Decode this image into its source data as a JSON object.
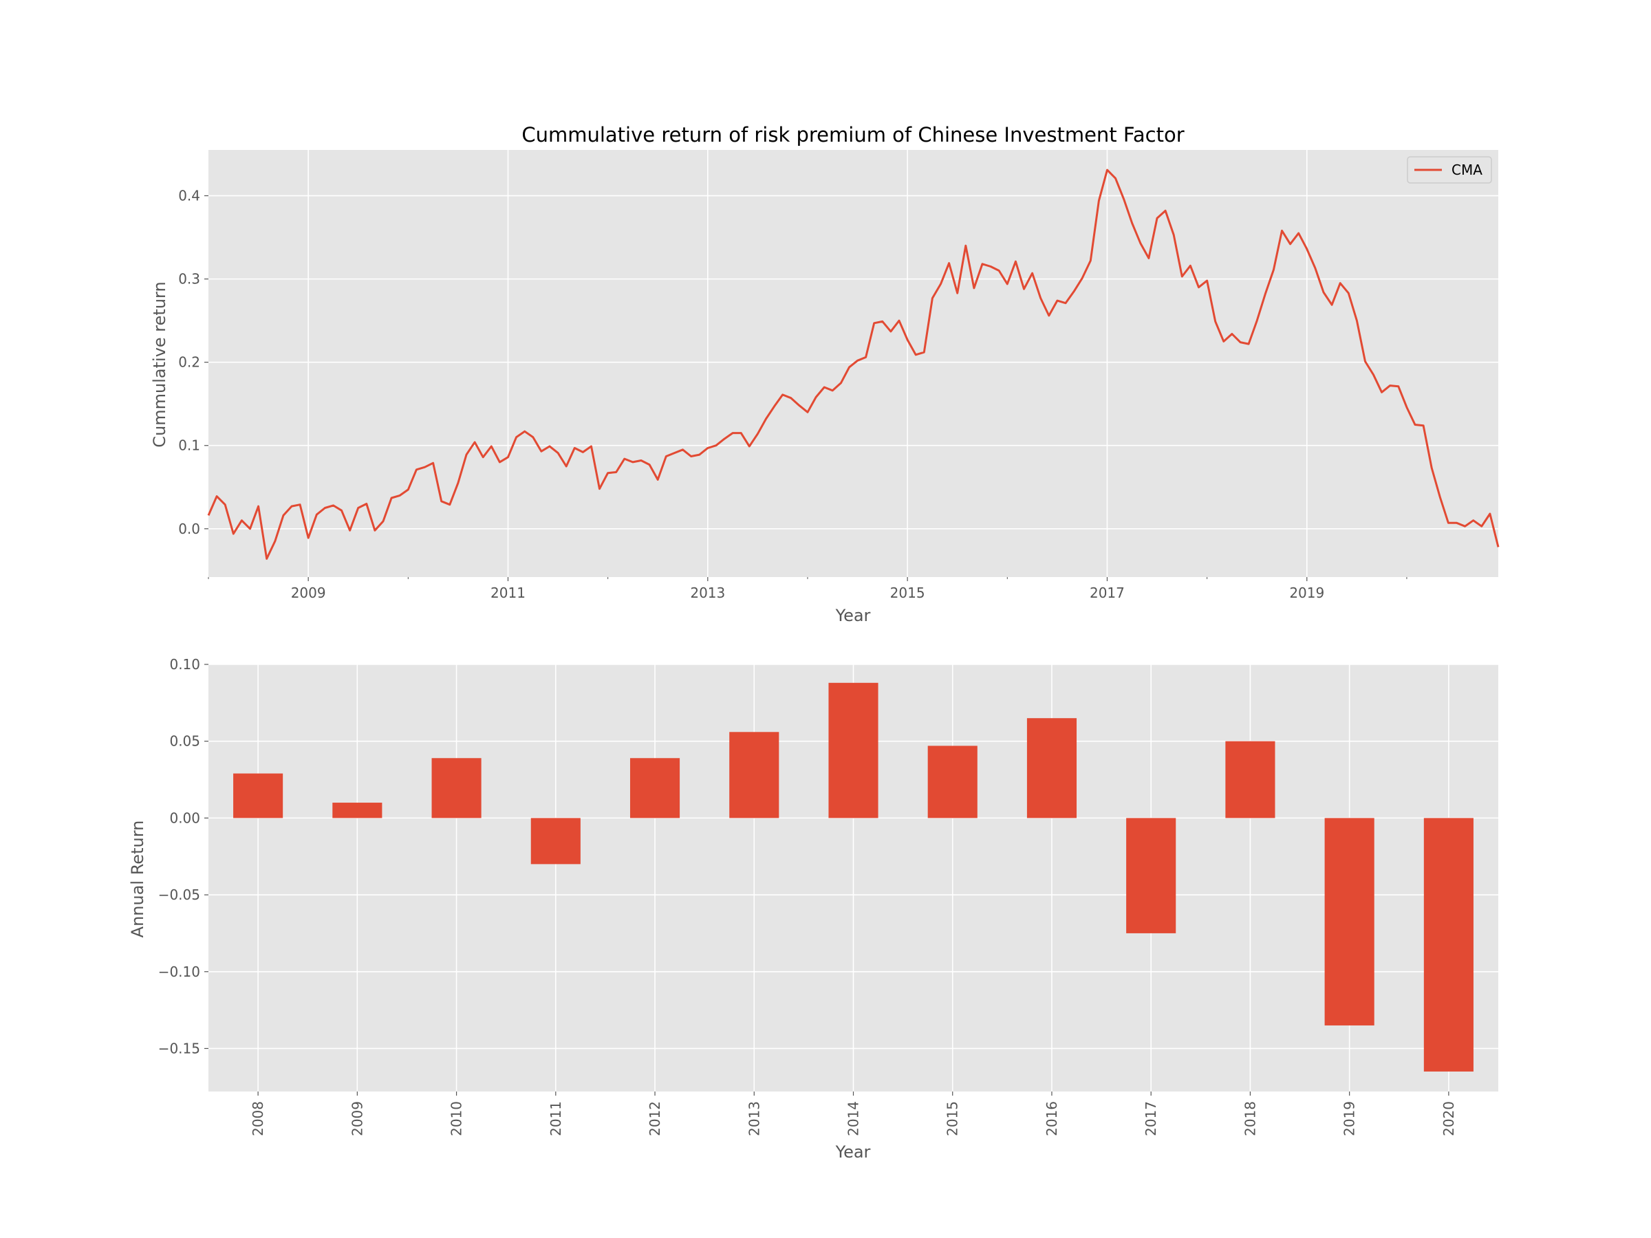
{
  "chart_data": [
    {
      "type": "line",
      "title": "Cummulative return of risk premium of Chinese Investment Factor",
      "xlabel": "Year",
      "ylabel": "Cummulative return",
      "x_tick_labels": [
        "2009",
        "2011",
        "2013",
        "2015",
        "2017",
        "2019"
      ],
      "y_tick_labels": [
        "0.0",
        "0.1",
        "0.2",
        "0.3",
        "0.4"
      ],
      "xlim": [
        "2008-01",
        "2020-12"
      ],
      "ylim": [
        -0.058,
        0.455
      ],
      "grid": true,
      "legend": "top-right",
      "x_start": "2008-01",
      "x_frequency": "monthly",
      "series": [
        {
          "name": "CMA",
          "color": "#E24A33",
          "values": [
            0.016,
            0.039,
            0.029,
            -0.006,
            0.01,
            0.0,
            0.027,
            -0.036,
            -0.015,
            0.016,
            0.027,
            0.029,
            -0.011,
            0.017,
            0.025,
            0.028,
            0.022,
            -0.002,
            0.025,
            0.03,
            -0.002,
            0.009,
            0.037,
            0.04,
            0.047,
            0.071,
            0.074,
            0.079,
            0.033,
            0.029,
            0.055,
            0.089,
            0.104,
            0.086,
            0.099,
            0.08,
            0.086,
            0.11,
            0.117,
            0.11,
            0.093,
            0.099,
            0.091,
            0.075,
            0.097,
            0.092,
            0.099,
            0.048,
            0.067,
            0.068,
            0.084,
            0.08,
            0.082,
            0.077,
            0.059,
            0.087,
            0.091,
            0.095,
            0.087,
            0.089,
            0.097,
            0.1,
            0.108,
            0.115,
            0.115,
            0.099,
            0.114,
            0.132,
            0.147,
            0.161,
            0.157,
            0.148,
            0.14,
            0.158,
            0.17,
            0.166,
            0.175,
            0.194,
            0.202,
            0.206,
            0.247,
            0.249,
            0.237,
            0.25,
            0.227,
            0.209,
            0.212,
            0.277,
            0.294,
            0.319,
            0.283,
            0.34,
            0.289,
            0.318,
            0.315,
            0.31,
            0.294,
            0.321,
            0.288,
            0.307,
            0.277,
            0.256,
            0.274,
            0.271,
            0.285,
            0.301,
            0.322,
            0.394,
            0.431,
            0.421,
            0.396,
            0.367,
            0.343,
            0.325,
            0.373,
            0.382,
            0.353,
            0.303,
            0.316,
            0.29,
            0.298,
            0.249,
            0.225,
            0.234,
            0.224,
            0.222,
            0.25,
            0.282,
            0.311,
            0.358,
            0.342,
            0.355,
            0.336,
            0.313,
            0.284,
            0.269,
            0.295,
            0.283,
            0.25,
            0.201,
            0.185,
            0.164,
            0.172,
            0.171,
            0.146,
            0.125,
            0.124,
            0.073,
            0.038,
            0.007,
            0.007,
            0.003,
            0.01,
            0.003,
            0.018,
            -0.022
          ]
        }
      ]
    },
    {
      "type": "bar",
      "title": "",
      "xlabel": "Year",
      "ylabel": "Annual Return",
      "categories": [
        "2008",
        "2009",
        "2010",
        "2011",
        "2012",
        "2013",
        "2014",
        "2015",
        "2016",
        "2017",
        "2018",
        "2019",
        "2020"
      ],
      "values": [
        0.029,
        0.01,
        0.039,
        -0.03,
        0.039,
        0.056,
        0.088,
        0.047,
        0.065,
        -0.075,
        0.05,
        -0.135,
        -0.165
      ],
      "y_tick_labels": [
        "0.10",
        "0.05",
        "0.00",
        "−0.05",
        "−0.10",
        "−0.15"
      ],
      "ylim": [
        -0.178,
        0.1
      ],
      "grid": true,
      "color": "#E24A33"
    }
  ]
}
